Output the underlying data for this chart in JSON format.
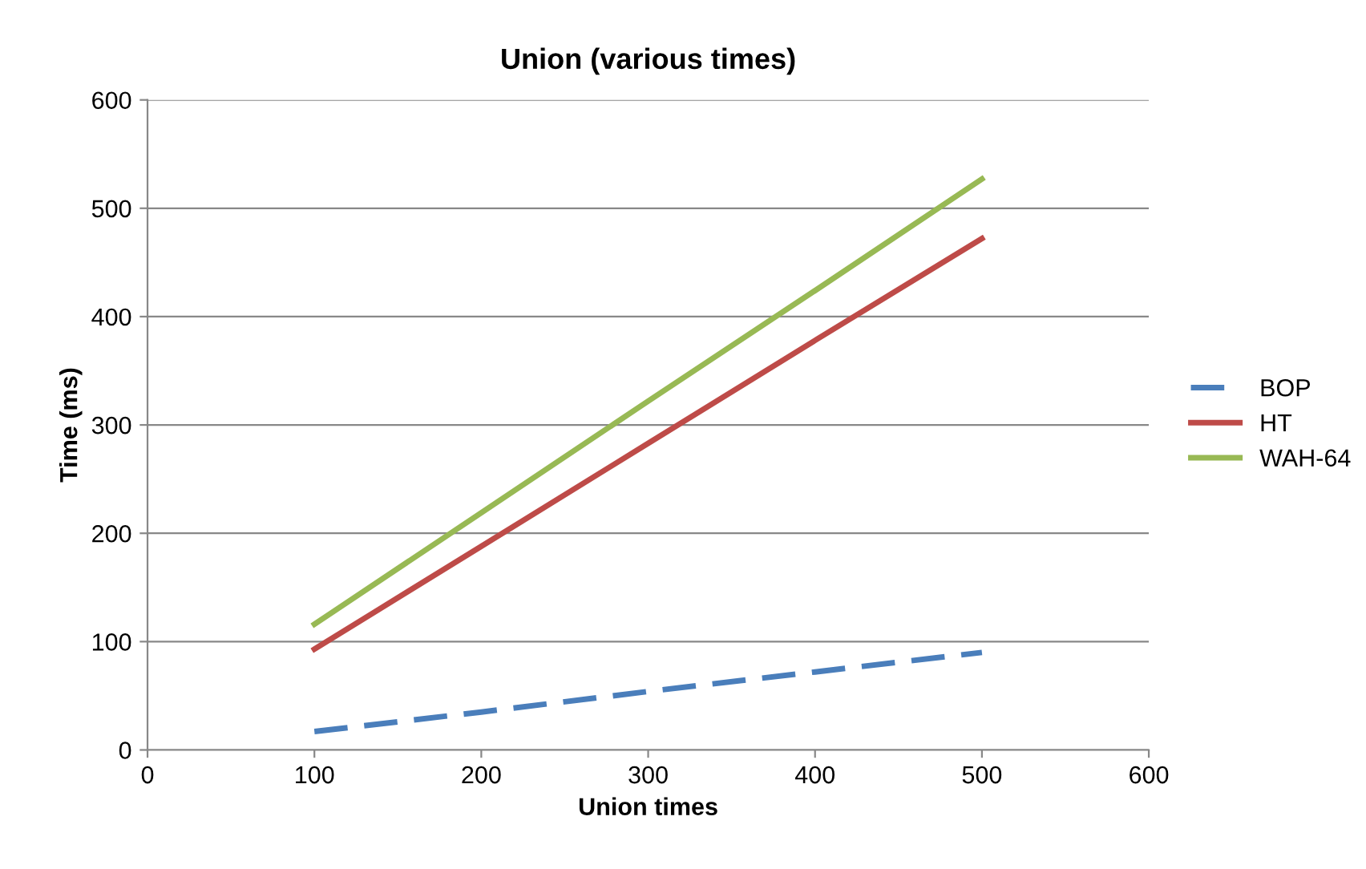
{
  "chart_data": {
    "type": "line",
    "title": "Union (various times)",
    "xlabel": "Union times",
    "ylabel": "Time (ms)",
    "x": [
      100,
      200,
      300,
      400,
      500
    ],
    "series": [
      {
        "name": "BOP",
        "color": "#4a7ebb",
        "values": [
          17,
          35,
          54,
          72,
          90
        ],
        "line_style": "dashed"
      },
      {
        "name": "HT",
        "color": "#be4b48",
        "values": [
          93,
          188,
          283,
          378,
          472
        ],
        "line_style": "solid"
      },
      {
        "name": "WAH-64",
        "color": "#98b954",
        "values": [
          116,
          219,
          322,
          424,
          527
        ],
        "line_style": "solid"
      }
    ],
    "xlim": [
      0,
      600
    ],
    "xticks": [
      0,
      100,
      200,
      300,
      400,
      500,
      600
    ],
    "ylim": [
      0,
      600
    ],
    "yticks": [
      0,
      100,
      200,
      300,
      400,
      500,
      600
    ],
    "grid": "y",
    "legend": "right",
    "marker": "none"
  }
}
